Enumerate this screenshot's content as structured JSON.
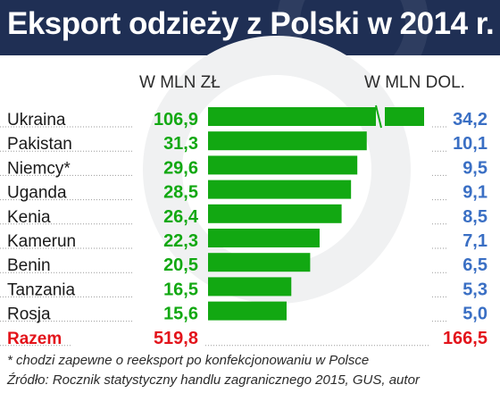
{
  "title": "Eksport odzieży z Polski w 2014 r.",
  "unit_left": "W MLN ZŁ",
  "unit_right": "W MLN DOL.",
  "colors": {
    "bar": "#12a812",
    "pln_value": "#12a812",
    "usd_value": "#3a6fc4",
    "total": "#e3141b",
    "header": "#1f2f54"
  },
  "chart_data": {
    "type": "bar",
    "orientation": "horizontal",
    "categories": [
      "Ukraina",
      "Pakistan",
      "Niemcy*",
      "Uganda",
      "Kenia",
      "Kamerun",
      "Benin",
      "Tanzania",
      "Rosja"
    ],
    "series": [
      {
        "values": [
          "106,9",
          "31,3",
          "29,6",
          "28,5",
          "26,4",
          "22,3",
          "20,5",
          "16,5",
          "15,6"
        ]
      },
      {
        "values": [
          "34,2",
          "10,1",
          "9,5",
          "9,1",
          "8,5",
          "7,1",
          "6,5",
          "5,3",
          "5,0"
        ]
      }
    ],
    "bar_values": [
      34.2,
      10.1,
      9.5,
      9.1,
      8.5,
      7.1,
      6.5,
      5.3,
      5.0
    ],
    "axis_break": true,
    "total": {
      "label": "Razem",
      "pln": "519,8",
      "usd": "166,5"
    }
  },
  "footnotes": [
    "* chodzi zapewne o reeksport po konfekcjonowaniu w Polsce",
    "Źródło: Rocznik statystyczny handlu zagranicznego 2015, GUS, autor"
  ]
}
